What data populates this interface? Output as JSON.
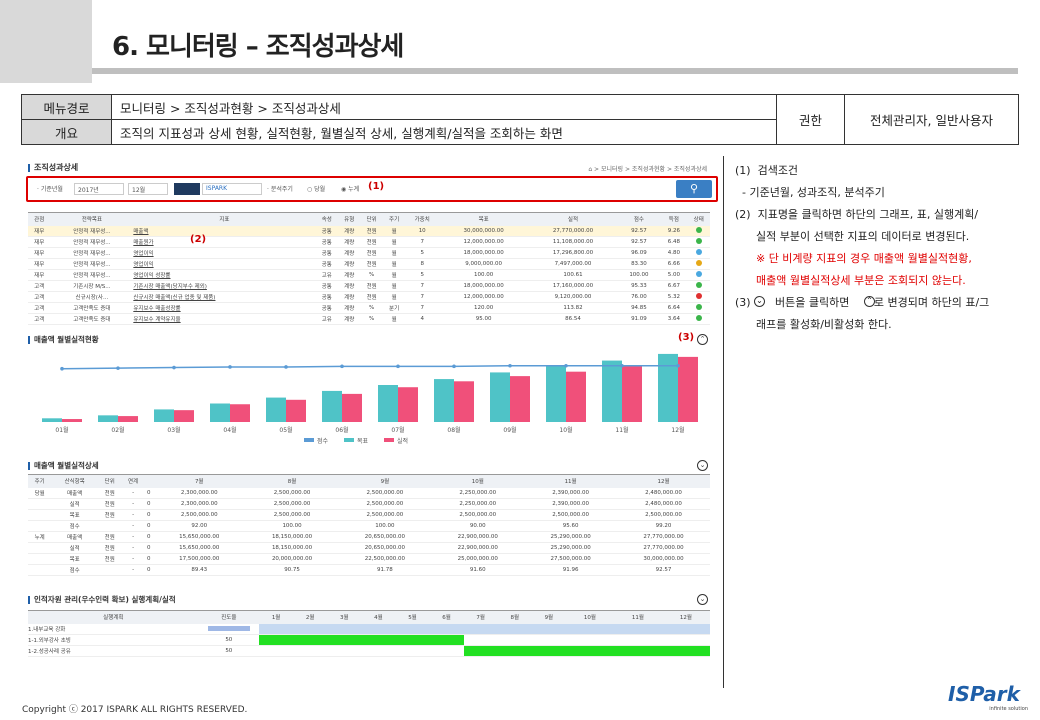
{
  "header": {
    "title": "6. 모니터링 – 조직성과상세"
  },
  "meta": {
    "menu_label": "메뉴경로",
    "menu_value": "모니터링 > 조직성과현황 > 조직성과상세",
    "overview_label": "개요",
    "overview_value": "조직의 지표성과 상세 현황, 실적현황, 월별실적 상세, 실행계획/실적을 조회하는 화면",
    "auth_label": "권한",
    "auth_value": "전체관리자, 일반사용자"
  },
  "screen": {
    "title": "조직성과상세",
    "breadcrumb": "⌂ > 모니터링 > 조직성과현황 > 조직성과상세",
    "search": {
      "label_ym": "· 기준년월",
      "year": "2017년",
      "month": "12월",
      "org": "ISPARK",
      "label_cycle": "· 분석주기",
      "opt1": "당월",
      "opt2": "누계"
    },
    "marker1": "(1)",
    "marker2": "(2)",
    "marker3": "(3)",
    "grid_headers": [
      "관점",
      "전략목표",
      "지표",
      "속성",
      "유형",
      "단위",
      "주기",
      "가중치",
      "목표",
      "실적",
      "점수",
      "득점",
      "상태"
    ],
    "grid_rows": [
      [
        "재무",
        "안정적 재무성...",
        "매출액",
        "공통",
        "계량",
        "천원",
        "월",
        "10",
        "30,000,000.00",
        "27,770,000.00",
        "92.57",
        "9.26",
        "#3bb54a"
      ],
      [
        "재무",
        "안정적 재무성...",
        "매출원가",
        "공통",
        "계량",
        "천원",
        "월",
        "7",
        "12,000,000.00",
        "11,108,000.00",
        "92.57",
        "6.48",
        "#3bb54a"
      ],
      [
        "재무",
        "안정적 재무성...",
        "영업이익",
        "공통",
        "계량",
        "천원",
        "월",
        "5",
        "18,000,000.00",
        "17,296,800.00",
        "96.09",
        "4.80",
        "#4aa8e0"
      ],
      [
        "재무",
        "안정적 재무성...",
        "영업이익",
        "공통",
        "계량",
        "천원",
        "월",
        "8",
        "9,000,000.00",
        "7,497,000.00",
        "83.30",
        "6.66",
        "#e6a817"
      ],
      [
        "재무",
        "안정적 재무성...",
        "영업이익 성장률",
        "고유",
        "계량",
        "%",
        "월",
        "5",
        "100.00",
        "100.61",
        "100.00",
        "5.00",
        "#4aa8e0"
      ],
      [
        "고객",
        "기존시장 M/S...",
        "기존시장 매출액(당지부수 제외)",
        "공통",
        "계량",
        "천원",
        "월",
        "7",
        "18,000,000.00",
        "17,160,000.00",
        "95.33",
        "6.67",
        "#3bb54a"
      ],
      [
        "고객",
        "신규시장(사...",
        "신규시장 매출액(신규 업종 및 제품)",
        "공통",
        "계량",
        "천원",
        "월",
        "7",
        "12,000,000.00",
        "9,120,000.00",
        "76.00",
        "5.32",
        "#e03030"
      ],
      [
        "고객",
        "고객만족도 증대",
        "유지보수 매출성장률",
        "공통",
        "계량",
        "%",
        "분기",
        "7",
        "120.00",
        "113.82",
        "94.85",
        "6.64",
        "#3bb54a"
      ],
      [
        "고객",
        "고객만족도 증대",
        "유지보수 계약유지율",
        "고유",
        "계량",
        "%",
        "월",
        "4",
        "95.00",
        "86.54",
        "91.09",
        "3.64",
        "#3bb54a"
      ]
    ],
    "chart_section_title": "매출액 월별실적현황",
    "detail_section_title": "매출액 월별실적상세",
    "plan_section_title": "인적자원 관리(우수인력 확보) 실행계획/실적",
    "detail_headers": [
      "주기",
      "산식항목",
      "단위",
      "연계",
      "",
      "7월",
      "8월",
      "9월",
      "10월",
      "11월",
      "12월"
    ],
    "detail_rows": [
      [
        "당월",
        "매출액",
        "천원",
        "-",
        "0",
        "2,300,000.00",
        "2,500,000.00",
        "2,500,000.00",
        "2,250,000.00",
        "2,390,000.00",
        "2,480,000.00"
      ],
      [
        "",
        "실적",
        "천원",
        "-",
        "0",
        "2,300,000.00",
        "2,500,000.00",
        "2,500,000.00",
        "2,250,000.00",
        "2,390,000.00",
        "2,480,000.00"
      ],
      [
        "",
        "목표",
        "천원",
        "-",
        "0",
        "2,500,000.00",
        "2,500,000.00",
        "2,500,000.00",
        "2,500,000.00",
        "2,500,000.00",
        "2,500,000.00"
      ],
      [
        "",
        "점수",
        "",
        "-",
        "0",
        "92.00",
        "100.00",
        "100.00",
        "90.00",
        "95.60",
        "99.20"
      ],
      [
        "누계",
        "매출액",
        "천원",
        "-",
        "0",
        "15,650,000.00",
        "18,150,000.00",
        "20,650,000.00",
        "22,900,000.00",
        "25,290,000.00",
        "27,770,000.00"
      ],
      [
        "",
        "실적",
        "천원",
        "-",
        "0",
        "15,650,000.00",
        "18,150,000.00",
        "20,650,000.00",
        "22,900,000.00",
        "25,290,000.00",
        "27,770,000.00"
      ],
      [
        "",
        "목표",
        "천원",
        "-",
        "0",
        "17,500,000.00",
        "20,000,000.00",
        "22,500,000.00",
        "25,000,000.00",
        "27,500,000.00",
        "30,000,000.00"
      ],
      [
        "",
        "점수",
        "",
        "-",
        "0",
        "89.43",
        "90.75",
        "91.78",
        "91.60",
        "91.96",
        "92.57"
      ]
    ],
    "plan_headers": [
      "실행계획",
      "진도율",
      "1월",
      "2월",
      "3월",
      "4월",
      "5월",
      "6월",
      "7월",
      "8월",
      "9월",
      "10월",
      "11월",
      "12월"
    ],
    "plan_rows": [
      {
        "name": "1.내부교육 강화",
        "rate": ""
      },
      {
        "name": "1-1.외부강사 초빙",
        "rate": "50"
      },
      {
        "name": "1-2.성공사례 공유",
        "rate": "50"
      }
    ]
  },
  "chart_data": {
    "type": "bar",
    "title": "매출액 월별실적현황",
    "categories": [
      "01월",
      "02월",
      "03월",
      "04월",
      "05월",
      "06월",
      "07월",
      "08월",
      "09월",
      "10월",
      "11월",
      "12월"
    ],
    "series": [
      {
        "name": "점수",
        "type": "line",
        "values": [
          90,
          91,
          92,
          93,
          93,
          94,
          94,
          94,
          95,
          95,
          95,
          95
        ]
      },
      {
        "name": "목표",
        "values": [
          5,
          9,
          17,
          25,
          33,
          42,
          50,
          58,
          67,
          75,
          83,
          92
        ]
      },
      {
        "name": "실적",
        "values": [
          4,
          8,
          16,
          24,
          30,
          38,
          47,
          55,
          62,
          68,
          77,
          88
        ]
      }
    ],
    "ylim": [
      0,
      100
    ],
    "colors": {
      "점수": "#5b9bd5",
      "목표": "#4fc3c7",
      "실적": "#f0507a"
    }
  },
  "notes": [
    {
      "text": "(1)  검색조건",
      "red": false
    },
    {
      "text": "  - 기준년월, 성과조직, 분석주기",
      "red": false
    },
    {
      "text": "(2)  지표명을 클릭하면 하단의 그래프, 표, 실행계획/",
      "red": false
    },
    {
      "text": "      실적 부분이 선택한 지표의 데이터로 변경된다.",
      "red": false
    },
    {
      "text": "      ※ 단 비계량 지표의 경우 매출액 월별실적현황,",
      "red": true
    },
    {
      "text": "      매출액 월별실적상세 부분은 조회되지 않는다.",
      "red": true
    },
    {
      "text": "(3)       버튼을 클릭하면       로 변경되며 하단의 표/그",
      "red": false
    },
    {
      "text": "      래프를 활성화/비활성화 한다.",
      "red": false
    }
  ],
  "footer": {
    "copyright": "Copyright ⓒ 2017 ISPARK ALL RIGHTS RESERVED.",
    "logo": "ISPark",
    "logo_sub": "infinite solution"
  }
}
